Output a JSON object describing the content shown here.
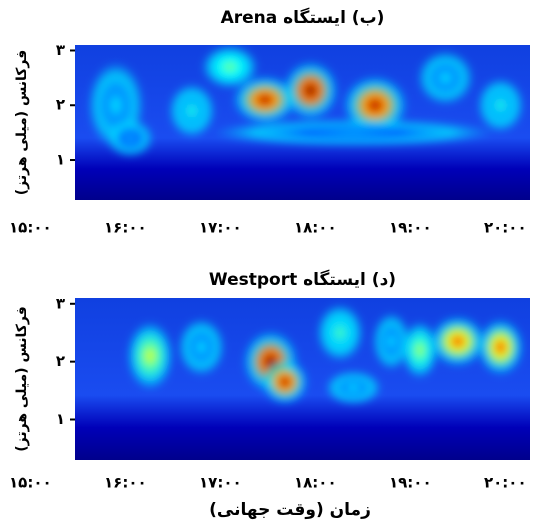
{
  "chart_data": [
    {
      "type": "heatmap",
      "title": "(ب) ایستگاه Arena",
      "ylabel": "فرکانس (میلی هرتز)",
      "xlim": [
        15.47,
        20.26
      ],
      "ylim": [
        0.27,
        3.1
      ],
      "xticks": [
        {
          "value": 15,
          "label": "۱۵:۰۰"
        },
        {
          "value": 16,
          "label": "۱۶:۰۰"
        },
        {
          "value": 17,
          "label": "۱۷:۰۰"
        },
        {
          "value": 18,
          "label": "۱۸:۰۰"
        },
        {
          "value": 19,
          "label": "۱۹:۰۰"
        },
        {
          "value": 20,
          "label": "۲۰:۰۰"
        }
      ],
      "yticks": [
        {
          "value": 1,
          "label": "۱"
        },
        {
          "value": 2,
          "label": "۲"
        },
        {
          "value": 3,
          "label": "۳"
        }
      ],
      "blobs": [
        {
          "x": 15.9,
          "y": 2.0,
          "value": 0.35,
          "dx": 0.3,
          "dy": 0.8
        },
        {
          "x": 16.05,
          "y": 1.4,
          "value": 0.3,
          "dx": 0.25,
          "dy": 0.35
        },
        {
          "x": 16.7,
          "y": 1.9,
          "value": 0.4,
          "dx": 0.25,
          "dy": 0.5
        },
        {
          "x": 17.1,
          "y": 2.7,
          "value": 0.5,
          "dx": 0.3,
          "dy": 0.4
        },
        {
          "x": 17.47,
          "y": 2.1,
          "value": 0.95,
          "dx": 0.35,
          "dy": 0.45
        },
        {
          "x": 17.95,
          "y": 2.27,
          "value": 1.0,
          "dx": 0.3,
          "dy": 0.55
        },
        {
          "x": 18.63,
          "y": 2.0,
          "value": 0.95,
          "dx": 0.35,
          "dy": 0.55
        },
        {
          "x": 19.37,
          "y": 2.5,
          "value": 0.35,
          "dx": 0.3,
          "dy": 0.5
        },
        {
          "x": 19.95,
          "y": 2.0,
          "value": 0.4,
          "dx": 0.25,
          "dy": 0.5
        },
        {
          "x": 18.4,
          "y": 1.5,
          "value": 0.3,
          "dx": 1.5,
          "dy": 0.25
        }
      ]
    },
    {
      "type": "heatmap",
      "title": "(د) ایستگاه Westport",
      "ylabel": "فرکانس (میلی هرتز)",
      "xlabel": "زمان (وقت جهانی)",
      "xlim": [
        15.47,
        20.26
      ],
      "ylim": [
        0.3,
        3.1
      ],
      "xticks": [
        {
          "value": 15,
          "label": "۱۵:۰۰"
        },
        {
          "value": 16,
          "label": "۱۶:۰۰"
        },
        {
          "value": 17,
          "label": "۱۷:۰۰"
        },
        {
          "value": 18,
          "label": "۱۸:۰۰"
        },
        {
          "value": 19,
          "label": "۱۹:۰۰"
        },
        {
          "value": 20,
          "label": "۲۰:۰۰"
        }
      ],
      "yticks": [
        {
          "value": 1,
          "label": "۱"
        },
        {
          "value": 2,
          "label": "۲"
        },
        {
          "value": 3,
          "label": "۳"
        }
      ],
      "blobs": [
        {
          "x": 16.26,
          "y": 2.1,
          "value": 0.6,
          "dx": 0.25,
          "dy": 0.6
        },
        {
          "x": 16.8,
          "y": 2.25,
          "value": 0.35,
          "dx": 0.25,
          "dy": 0.5
        },
        {
          "x": 17.53,
          "y": 2.0,
          "value": 1.0,
          "dx": 0.3,
          "dy": 0.55
        },
        {
          "x": 17.68,
          "y": 1.65,
          "value": 0.95,
          "dx": 0.25,
          "dy": 0.4
        },
        {
          "x": 18.26,
          "y": 2.5,
          "value": 0.45,
          "dx": 0.25,
          "dy": 0.5
        },
        {
          "x": 18.4,
          "y": 1.55,
          "value": 0.35,
          "dx": 0.3,
          "dy": 0.3
        },
        {
          "x": 18.8,
          "y": 2.35,
          "value": 0.35,
          "dx": 0.2,
          "dy": 0.5
        },
        {
          "x": 19.1,
          "y": 2.2,
          "value": 0.55,
          "dx": 0.2,
          "dy": 0.5
        },
        {
          "x": 19.5,
          "y": 2.35,
          "value": 0.8,
          "dx": 0.3,
          "dy": 0.45
        },
        {
          "x": 19.95,
          "y": 2.25,
          "value": 0.8,
          "dx": 0.25,
          "dy": 0.5
        }
      ]
    }
  ]
}
